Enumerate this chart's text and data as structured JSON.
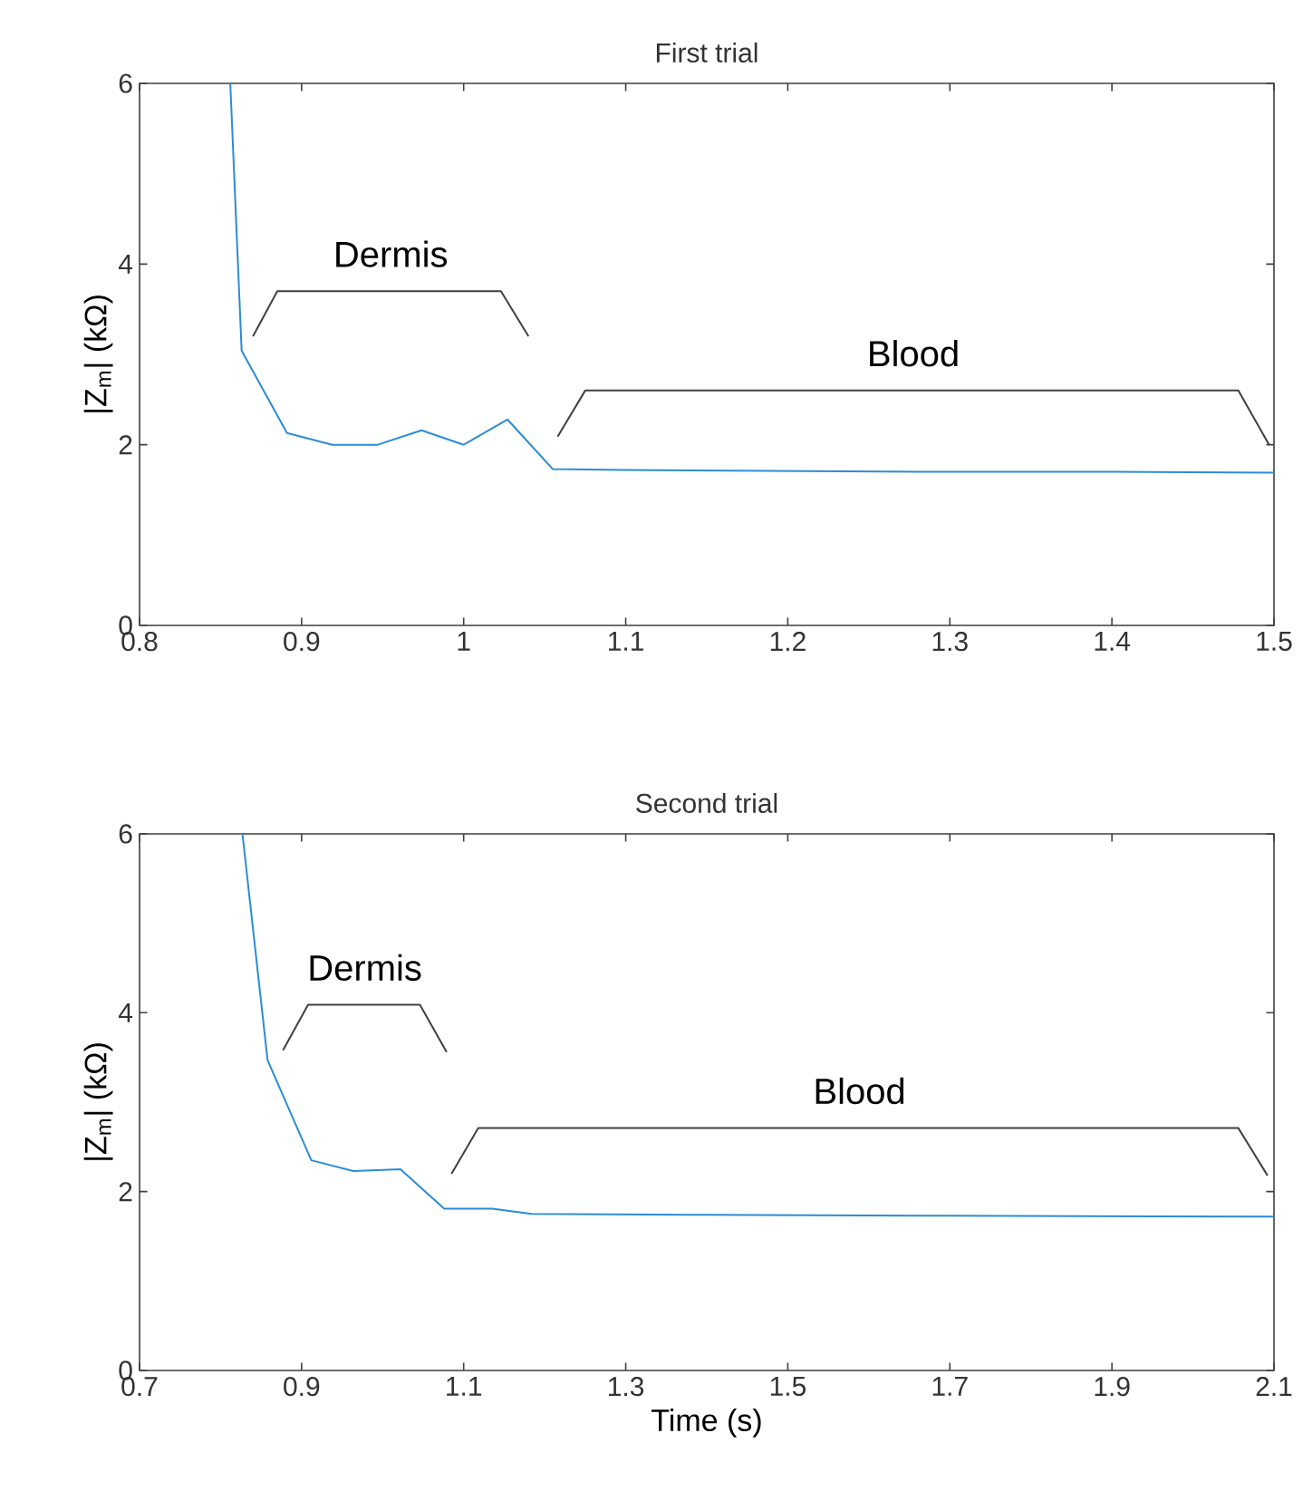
{
  "chart_data": [
    {
      "type": "line",
      "title": "First trial",
      "ylabel": "|Z$_{m}$| (kΩ)",
      "xlim": [
        0.8,
        1.5
      ],
      "ylim": [
        0,
        6
      ],
      "xticks": [
        0.8,
        0.9,
        1,
        1.1,
        1.2,
        1.3,
        1.4,
        1.5
      ],
      "yticks": [
        0,
        2,
        4,
        6
      ],
      "series": [
        {
          "color": "#2b8cd6",
          "x": [
            0.856,
            0.863,
            0.891,
            0.919,
            0.947,
            0.974,
            1.0,
            1.027,
            1.055,
            1.1,
            1.2,
            1.3,
            1.4,
            1.5
          ],
          "values": [
            6,
            3.04,
            2.13,
            2.0,
            2.0,
            2.16,
            2.0,
            2.28,
            1.73,
            1.72,
            1.71,
            1.7,
            1.7,
            1.69
          ]
        },
        {
          "color": "#404040",
          "x": [
            0.87,
            0.885,
            1.023,
            1.04
          ],
          "values": [
            3.2,
            3.7,
            3.7,
            3.2
          ]
        },
        {
          "color": "#404040",
          "x": [
            1.058,
            1.075,
            1.478,
            1.497
          ],
          "values": [
            2.09,
            2.6,
            2.6,
            2.0
          ]
        }
      ],
      "annotations": [
        "Dermis",
        "Blood"
      ]
    },
    {
      "type": "line",
      "title": "Second trial",
      "xlabel": "Time (s)",
      "ylabel": "|Z$_{m}$| (kΩ)",
      "xlim": [
        0.7,
        2.1
      ],
      "ylim": [
        0,
        6
      ],
      "xticks": [
        0.7,
        0.9,
        1.1,
        1.3,
        1.5,
        1.7,
        1.9,
        2.1
      ],
      "yticks": [
        0,
        2,
        4,
        6
      ],
      "series": [
        {
          "color": "#2b8cd6",
          "x": [
            0.827,
            0.858,
            0.912,
            0.964,
            1.022,
            1.076,
            1.135,
            1.184,
            1.4,
            1.7,
            2.1
          ],
          "values": [
            6,
            3.47,
            2.35,
            2.23,
            2.25,
            1.81,
            1.81,
            1.75,
            1.74,
            1.73,
            1.72
          ]
        },
        {
          "color": "#404040",
          "x": [
            0.877,
            0.908,
            1.046,
            1.079
          ],
          "values": [
            3.58,
            4.09,
            4.09,
            3.56
          ]
        },
        {
          "color": "#404040",
          "x": [
            1.085,
            1.118,
            2.056,
            2.092
          ],
          "values": [
            2.2,
            2.71,
            2.71,
            2.18
          ]
        }
      ],
      "annotations": [
        "Dermis",
        "Blood"
      ]
    }
  ]
}
